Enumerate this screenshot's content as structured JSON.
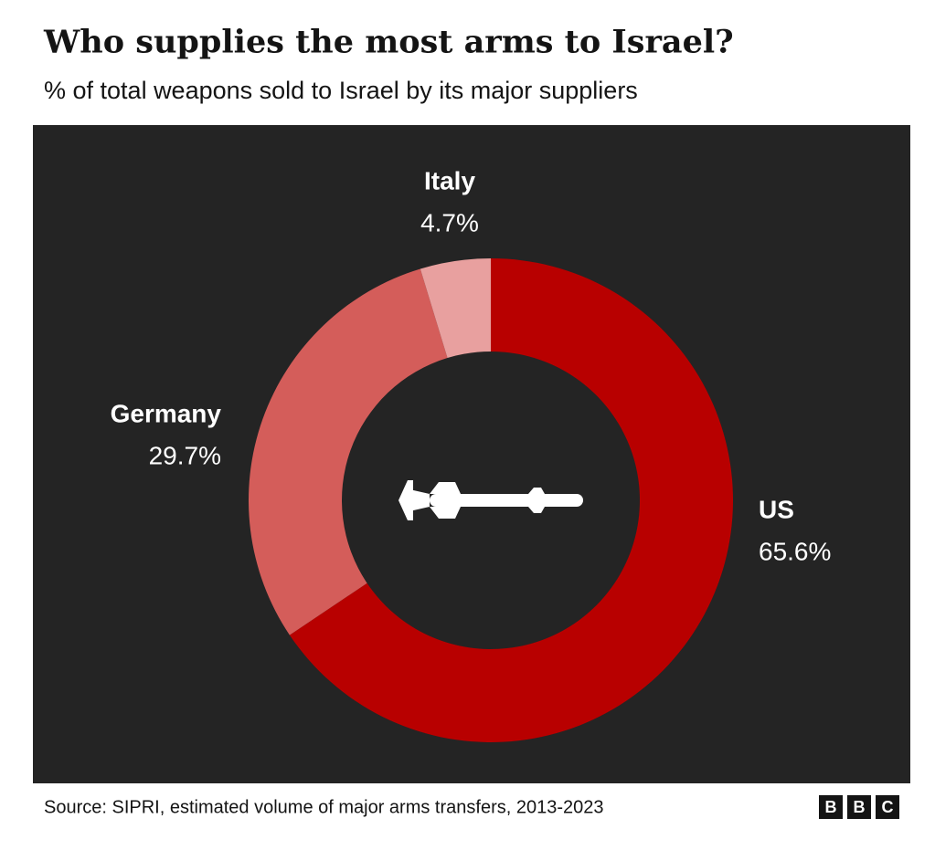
{
  "chart_data": {
    "type": "donut",
    "title": "Who supplies the most arms to Israel?",
    "subtitle": "% of total weapons sold to Israel by its major suppliers",
    "categories": [
      "US",
      "Germany",
      "Italy"
    ],
    "values": [
      65.6,
      29.7,
      4.7
    ],
    "value_labels": [
      "65.6%",
      "29.7%",
      "4.7%"
    ],
    "colors": [
      "#b80000",
      "#d45d5a",
      "#e8a09f"
    ],
    "source": "Source: SIPRI, estimated volume of major arms transfers, 2013-2023",
    "logo": [
      "B",
      "B",
      "C"
    ]
  }
}
